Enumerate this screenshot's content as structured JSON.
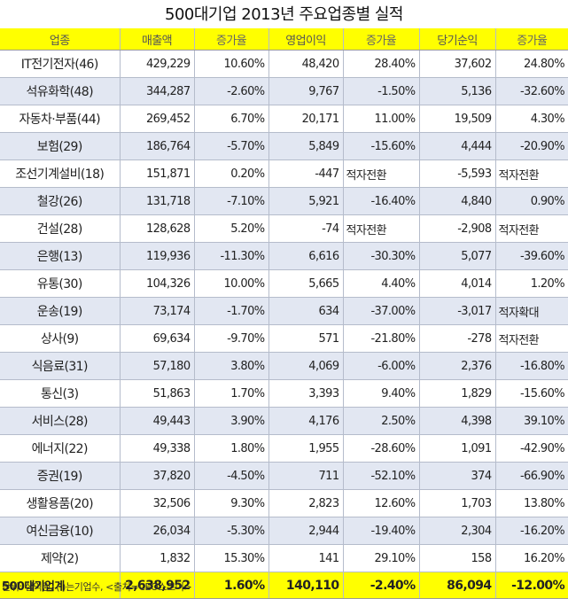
{
  "chart_data": {
    "type": "table",
    "title": "500대기업 2013년 주요업종별 실적",
    "columns": [
      "업종",
      "매출액",
      "증가율",
      "영업이익",
      "증가율",
      "당기순익",
      "증가율"
    ],
    "rows": [
      [
        "IT전기전자(46)",
        "429,229",
        "10.60%",
        "48,420",
        "28.40%",
        "37,602",
        "24.80%"
      ],
      [
        "석유화학(48)",
        "344,287",
        "-2.60%",
        "9,767",
        "-1.50%",
        "5,136",
        "-32.60%"
      ],
      [
        "자동차·부품(44)",
        "269,452",
        "6.70%",
        "20,171",
        "11.00%",
        "19,509",
        "4.30%"
      ],
      [
        "보험(29)",
        "186,764",
        "-5.70%",
        "5,849",
        "-15.60%",
        "4,444",
        "-20.90%"
      ],
      [
        "조선기계설비(18)",
        "151,871",
        "0.20%",
        "-447",
        "적자전환",
        "-5,593",
        "적자전환"
      ],
      [
        "철강(26)",
        "131,718",
        "-7.10%",
        "5,921",
        "-16.40%",
        "4,840",
        "0.90%"
      ],
      [
        "건설(28)",
        "128,628",
        "5.20%",
        "-74",
        "적자전환",
        "-2,908",
        "적자전환"
      ],
      [
        "은행(13)",
        "119,936",
        "-11.30%",
        "6,616",
        "-30.30%",
        "5,077",
        "-39.60%"
      ],
      [
        "유통(30)",
        "104,326",
        "10.00%",
        "5,665",
        "4.40%",
        "4,014",
        "1.20%"
      ],
      [
        "운송(19)",
        "73,174",
        "-1.70%",
        "634",
        "-37.00%",
        "-3,017",
        "적자확대"
      ],
      [
        "상사(9)",
        "69,634",
        "-9.70%",
        "571",
        "-21.80%",
        "-278",
        "적자전환"
      ],
      [
        "식음료(31)",
        "57,180",
        "3.80%",
        "4,069",
        "-6.00%",
        "2,376",
        "-16.80%"
      ],
      [
        "통신(3)",
        "51,863",
        "1.70%",
        "3,393",
        "9.40%",
        "1,829",
        "-15.60%"
      ],
      [
        "서비스(28)",
        "49,443",
        "3.90%",
        "4,176",
        "2.50%",
        "4,398",
        "39.10%"
      ],
      [
        "에너지(22)",
        "49,338",
        "1.80%",
        "1,955",
        "-28.60%",
        "1,091",
        "-42.90%"
      ],
      [
        "증권(19)",
        "37,820",
        "-4.50%",
        "711",
        "-52.10%",
        "374",
        "-66.90%"
      ],
      [
        "생활용품(20)",
        "32,506",
        "9.30%",
        "2,823",
        "12.60%",
        "1,703",
        "13.80%"
      ],
      [
        "여신금융(10)",
        "26,034",
        "-5.30%",
        "2,944",
        "-19.40%",
        "2,304",
        "-16.20%"
      ],
      [
        "제약(2)",
        "1,832",
        "15.30%",
        "141",
        "29.10%",
        "158",
        "16.20%"
      ]
    ],
    "total": [
      "500대기업계",
      "2,638,952",
      "1.60%",
      "140,110",
      "-2.40%",
      "86,094",
      "-12.00%"
    ],
    "note": "단위: 십억원, ( )는기업수, <출처=CEO스코어>",
    "colors": {
      "header": "#ffff00",
      "stripe": "#e2e7f2",
      "border": "#b5bccb"
    }
  }
}
